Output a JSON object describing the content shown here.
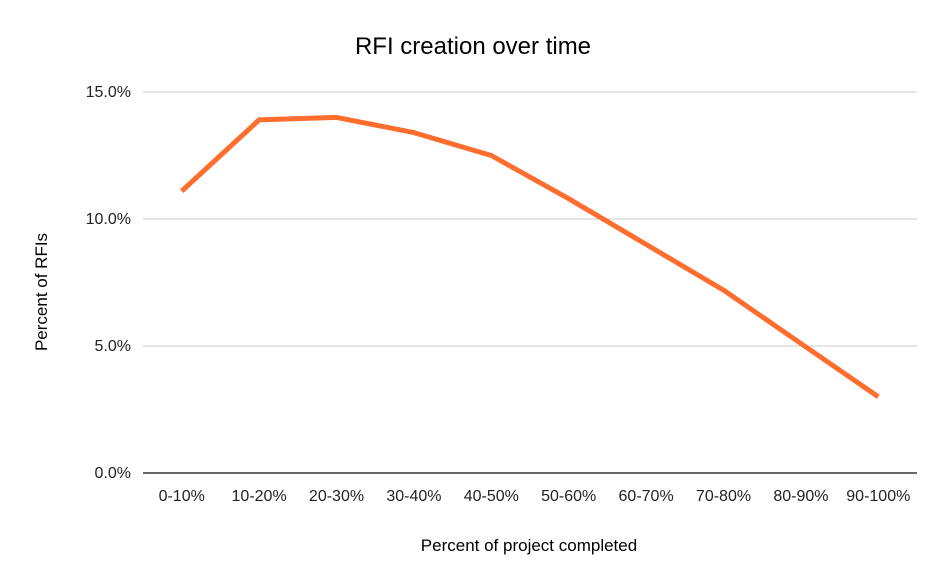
{
  "chart_data": {
    "type": "line",
    "title": "RFI creation over time",
    "xlabel": "Percent of project completed",
    "ylabel": "Percent of RFIs",
    "categories": [
      "0-10%",
      "10-20%",
      "20-30%",
      "30-40%",
      "40-50%",
      "50-60%",
      "60-70%",
      "70-80%",
      "80-90%",
      "90-100%"
    ],
    "series": [
      {
        "values": [
          11.1,
          13.9,
          14.0,
          13.4,
          12.5,
          10.8,
          9.0,
          7.2,
          5.1,
          3.0
        ]
      }
    ],
    "ylim": [
      0,
      15
    ],
    "yticks": [
      "0.0%",
      "5.0%",
      "10.0%",
      "15.0%"
    ],
    "ytick_values": [
      0,
      5,
      10,
      15
    ],
    "grid": true,
    "legend": "none",
    "colors": {
      "line": "#ff6d2f",
      "grid": "#c8c8c8",
      "baseline": "#333333"
    }
  }
}
